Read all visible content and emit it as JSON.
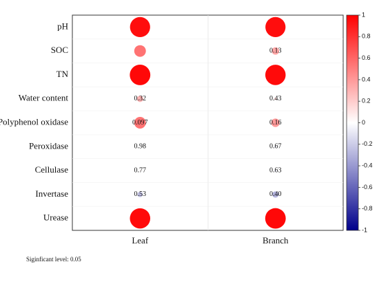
{
  "chart_data": {
    "type": "corrplot",
    "columns": [
      "Leaf",
      "Branch"
    ],
    "rows": [
      "pH",
      "SOC",
      "TN",
      "Water content",
      "Polyphenol oxidase",
      "Peroxidase",
      "Cellulase",
      "Invertase",
      "Urease"
    ],
    "values": [
      [
        0.95,
        0.95
      ],
      [
        0.55,
        0.35
      ],
      [
        0.97,
        0.96
      ],
      [
        0.3,
        0.12
      ],
      [
        0.55,
        0.4
      ],
      [
        0.02,
        -0.1
      ],
      [
        0.06,
        -0.1
      ],
      [
        -0.25,
        -0.3
      ],
      [
        0.96,
        0.97
      ]
    ],
    "p_values": [
      [
        null,
        null
      ],
      [
        null,
        "0.13"
      ],
      [
        null,
        null
      ],
      [
        "0.32",
        "0.43"
      ],
      [
        "0.097",
        "0.16"
      ],
      [
        "0.98",
        "0.67"
      ],
      [
        "0.77",
        "0.63"
      ],
      [
        "0.53",
        "0.40"
      ],
      [
        null,
        null
      ]
    ],
    "colormap": [
      "#00008b",
      "#ffffff",
      "#ff0000"
    ],
    "ylim": [
      -1,
      1
    ],
    "yticks": [
      1,
      0.8,
      0.6,
      0.4,
      0.2,
      0,
      -0.2,
      -0.4,
      -0.6,
      -0.8,
      -1
    ],
    "note": "Siginficant level: 0.05"
  }
}
